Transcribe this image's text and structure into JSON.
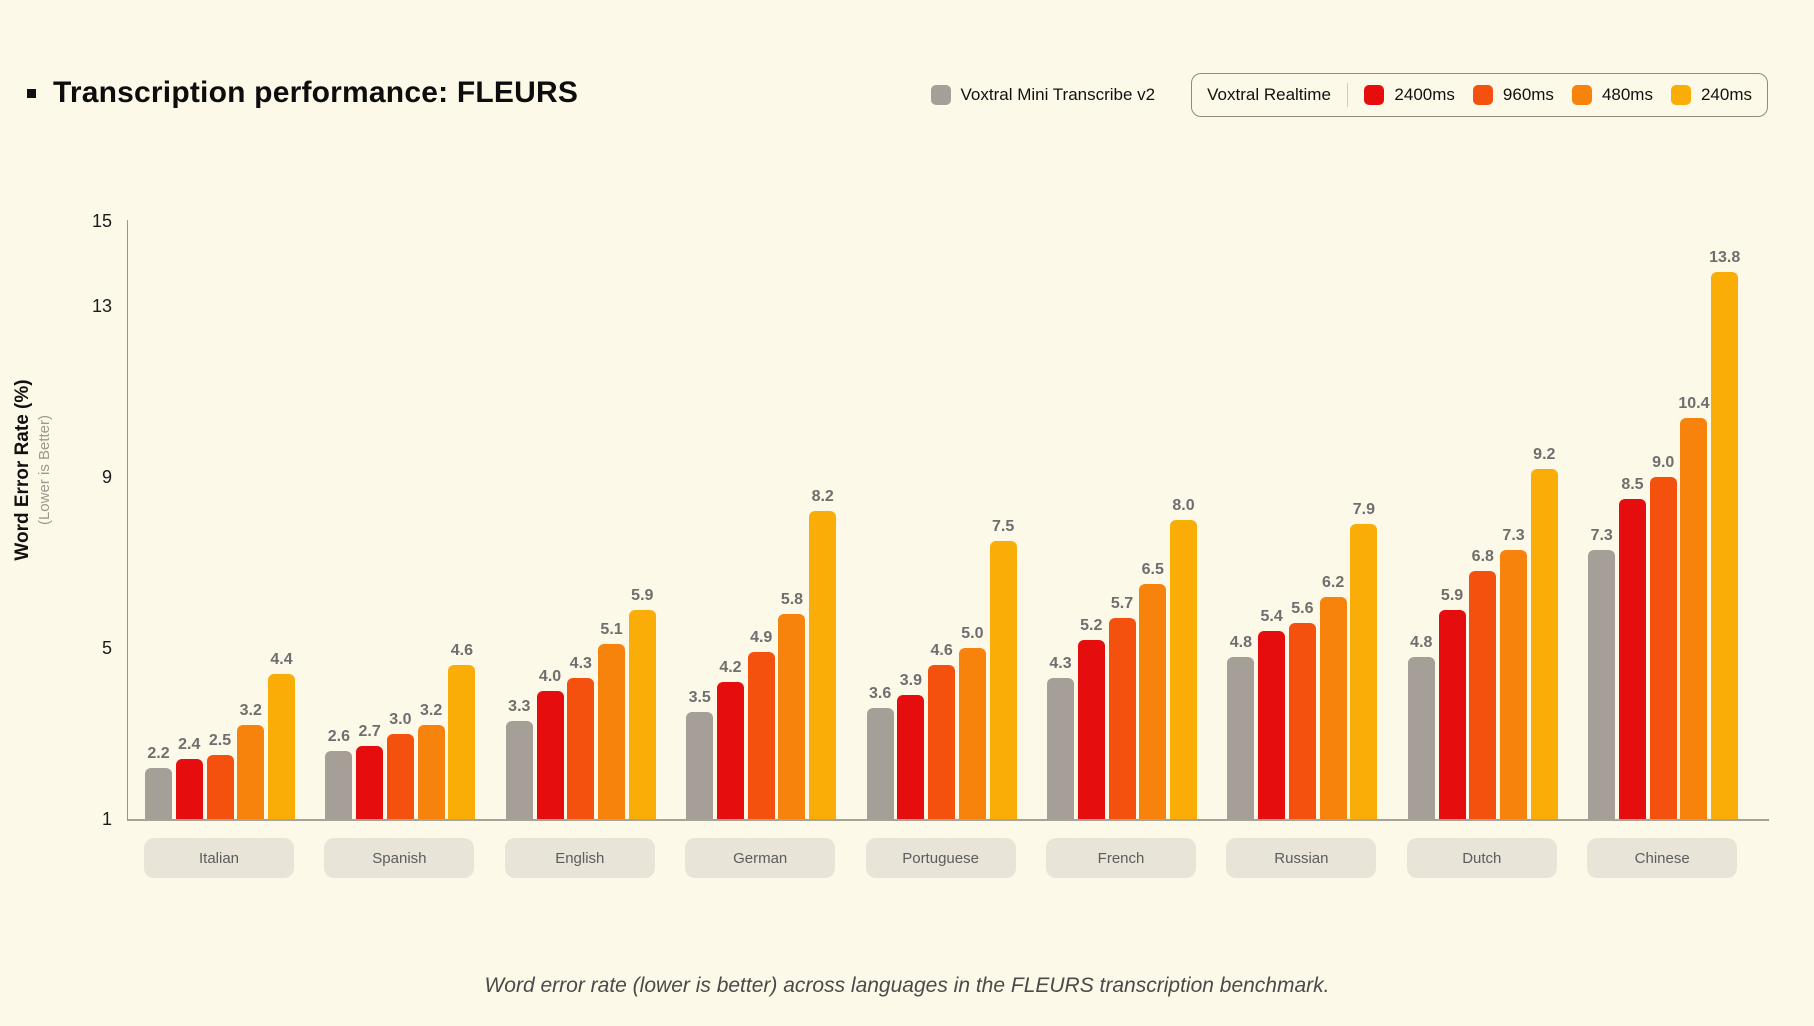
{
  "title": "Transcription performance: FLEURS",
  "legend": {
    "standalone": {
      "label": "Voxtral Mini Transcribe v2",
      "color": "#a59f98"
    },
    "group_label": "Voxtral Realtime",
    "items": [
      {
        "label": "2400ms",
        "color": "#e50d0d"
      },
      {
        "label": "960ms",
        "color": "#f4500e"
      },
      {
        "label": "480ms",
        "color": "#f8830c"
      },
      {
        "label": "240ms",
        "color": "#fbad07"
      }
    ]
  },
  "y_axis": {
    "label": "Word Error Rate (%)",
    "sublabel": "(Lower is Better)",
    "ticks": [
      15,
      13,
      9,
      5,
      1
    ]
  },
  "caption": "Word error rate (lower is better) across languages in the FLEURS transcription benchmark.",
  "chart_data": {
    "type": "bar",
    "title": "Transcription performance: FLEURS",
    "ylabel": "Word Error Rate (%)",
    "ylim": [
      1,
      15
    ],
    "grid": false,
    "legend_position": "top-right",
    "categories": [
      "Italian",
      "Spanish",
      "English",
      "German",
      "Portuguese",
      "French",
      "Russian",
      "Dutch",
      "Chinese"
    ],
    "series": [
      {
        "name": "Voxtral Mini Transcribe v2",
        "color": "#a59f98",
        "values": [
          2.2,
          2.6,
          3.3,
          3.5,
          3.6,
          4.3,
          4.8,
          4.8,
          7.3
        ]
      },
      {
        "name": "2400ms",
        "color": "#e50d0d",
        "values": [
          2.4,
          2.7,
          4.0,
          4.2,
          3.9,
          5.2,
          5.4,
          5.9,
          8.5
        ]
      },
      {
        "name": "960ms",
        "color": "#f4500e",
        "values": [
          2.5,
          3.0,
          4.3,
          4.9,
          4.6,
          5.7,
          5.6,
          6.8,
          9.0
        ]
      },
      {
        "name": "480ms",
        "color": "#f8830c",
        "values": [
          3.2,
          3.2,
          5.1,
          5.8,
          5.0,
          6.5,
          6.2,
          7.3,
          10.4
        ]
      },
      {
        "name": "240ms",
        "color": "#fbad07",
        "values": [
          4.4,
          4.6,
          5.9,
          8.2,
          7.5,
          8.0,
          7.9,
          9.2,
          13.8
        ]
      }
    ]
  }
}
